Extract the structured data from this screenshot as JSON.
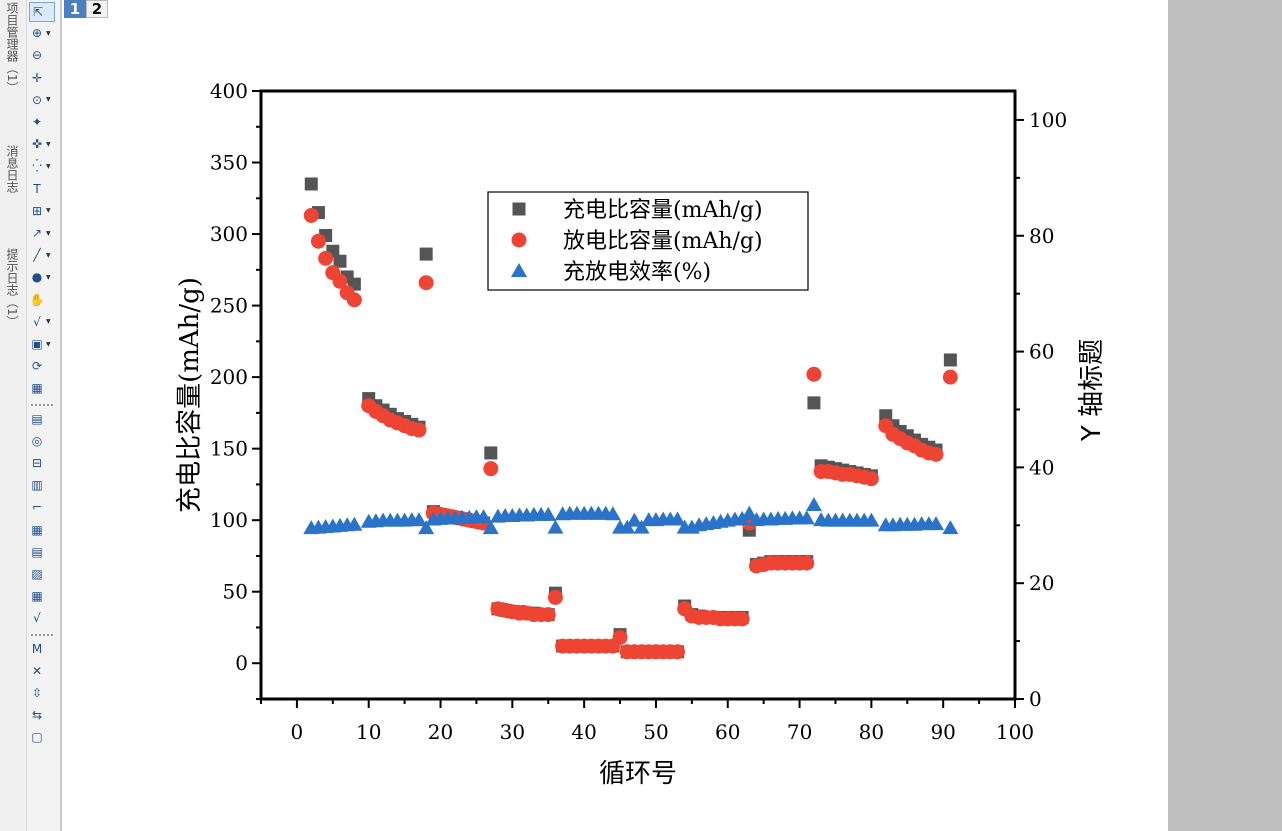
{
  "side_tabs": [
    "项目管理器（1）",
    "消息日志",
    "提示日志（1）"
  ],
  "toolbar_icons": [
    "pointer-icon",
    "zoom-icon",
    "zoom-scroll-icon",
    "scale-icon",
    "data-reader-icon",
    "screen-reader-icon",
    "data-selector-icon",
    "region-mask-icon",
    "text-tool-icon",
    "add-table-icon",
    "arrow-tool-icon",
    "line-tool-icon",
    "ellipse-tool-icon",
    "pan-hand-icon",
    "equation-icon",
    "insert-graph-icon",
    "3d-rotate-icon",
    "layer-icon",
    "color-scale-icon",
    "anchor-icon",
    "merge-icon",
    "legend-icon",
    "bracket-icon",
    "table-icon",
    "data-info-icon",
    "folder-graph-icon",
    "grid-icon",
    "equation-icon-2",
    "m-icon",
    "close-layer-icon",
    "move-layer-icon",
    "swap-icon",
    "lock-icon"
  ],
  "page_tabs": [
    "1",
    "2"
  ],
  "colors": {
    "charge": "#555555",
    "discharge": "#ee4433",
    "efficiency": "#2a73c8"
  },
  "chart_data": {
    "type": "scatter",
    "title": "",
    "xlabel": "循环号",
    "ylabel": "充电比容量(mAh/g)",
    "y2label": "Y 轴标题",
    "xlim": [
      -5,
      100
    ],
    "ylim": [
      -25,
      400
    ],
    "y2lim": [
      0,
      105
    ],
    "xticks": [
      0,
      10,
      20,
      30,
      40,
      50,
      60,
      70,
      80,
      90,
      100
    ],
    "yticks": [
      0,
      50,
      100,
      150,
      200,
      250,
      300,
      350,
      400
    ],
    "y2ticks": [
      0,
      20,
      40,
      60,
      80,
      100
    ],
    "legend_position": "top-center",
    "series": [
      {
        "name": "充电比容量(mAh/g)",
        "marker": "square",
        "axis": "left",
        "x": [
          2,
          3,
          4,
          5,
          6,
          7,
          8,
          10,
          11,
          12,
          13,
          14,
          15,
          16,
          17,
          18,
          19,
          20,
          21,
          22,
          23,
          24,
          25,
          26,
          27,
          28,
          29,
          30,
          31,
          32,
          33,
          34,
          35,
          36,
          37,
          38,
          39,
          40,
          41,
          42,
          43,
          44,
          45,
          46,
          47,
          48,
          49,
          50,
          51,
          52,
          53,
          54,
          55,
          56,
          57,
          58,
          59,
          60,
          61,
          62,
          63,
          64,
          65,
          66,
          67,
          68,
          69,
          70,
          71,
          72,
          73,
          74,
          75,
          76,
          77,
          78,
          79,
          80,
          82,
          83,
          84,
          85,
          86,
          87,
          88,
          89,
          91
        ],
        "y": [
          335,
          315,
          299,
          288,
          281,
          270,
          265,
          185,
          180,
          177,
          174,
          171,
          169,
          167,
          165,
          286,
          106,
          104,
          103,
          102,
          101,
          100,
          99,
          98,
          147,
          38,
          37,
          36,
          36,
          35,
          35,
          34,
          34,
          49,
          12,
          12,
          12,
          12,
          12,
          12,
          12,
          12,
          20,
          8,
          8,
          8,
          8,
          8,
          8,
          8,
          8,
          40,
          34,
          33,
          32,
          32,
          32,
          32,
          32,
          32,
          93,
          69,
          70,
          71,
          71,
          71,
          71,
          71,
          71,
          182,
          138,
          137,
          136,
          135,
          134,
          133,
          132,
          131,
          173,
          166,
          162,
          159,
          156,
          153,
          151,
          149,
          212
        ]
      },
      {
        "name": "放电比容量(mAh/g)",
        "marker": "circle",
        "axis": "left",
        "x": [
          2,
          3,
          4,
          5,
          6,
          7,
          8,
          10,
          11,
          12,
          13,
          14,
          15,
          16,
          17,
          18,
          19,
          20,
          21,
          22,
          23,
          24,
          25,
          26,
          27,
          28,
          29,
          30,
          31,
          32,
          33,
          34,
          35,
          36,
          37,
          38,
          39,
          40,
          41,
          42,
          43,
          44,
          45,
          46,
          47,
          48,
          49,
          50,
          51,
          52,
          53,
          54,
          55,
          56,
          57,
          58,
          59,
          60,
          61,
          62,
          63,
          64,
          65,
          66,
          67,
          68,
          69,
          70,
          71,
          72,
          73,
          74,
          75,
          76,
          77,
          78,
          79,
          80,
          82,
          83,
          84,
          85,
          86,
          87,
          88,
          89,
          91
        ],
        "y": [
          313,
          295,
          283,
          273,
          267,
          259,
          254,
          180,
          176,
          173,
          170,
          168,
          166,
          164,
          163,
          266,
          105,
          104,
          103,
          102,
          101,
          100,
          99,
          98,
          136,
          38,
          37,
          36,
          35,
          35,
          34,
          34,
          34,
          46,
          12,
          12,
          12,
          12,
          12,
          12,
          12,
          12,
          18,
          8,
          8,
          8,
          8,
          8,
          8,
          8,
          8,
          38,
          33,
          32,
          32,
          32,
          31,
          31,
          31,
          31,
          98,
          68,
          69,
          70,
          70,
          70,
          70,
          70,
          70,
          202,
          134,
          134,
          133,
          132,
          132,
          131,
          130,
          129,
          166,
          160,
          157,
          154,
          152,
          149,
          147,
          146,
          200
        ]
      },
      {
        "name": "充放电效率(%)",
        "marker": "triangle",
        "axis": "right",
        "x": [
          2,
          3,
          4,
          5,
          6,
          7,
          8,
          10,
          11,
          12,
          13,
          14,
          15,
          16,
          17,
          18,
          19,
          20,
          21,
          22,
          23,
          24,
          25,
          26,
          27,
          28,
          29,
          30,
          31,
          32,
          33,
          34,
          35,
          36,
          37,
          38,
          39,
          40,
          41,
          42,
          43,
          44,
          45,
          46,
          47,
          48,
          49,
          50,
          51,
          52,
          53,
          54,
          55,
          56,
          57,
          58,
          59,
          60,
          61,
          62,
          63,
          64,
          65,
          66,
          67,
          68,
          69,
          70,
          71,
          72,
          73,
          74,
          75,
          76,
          77,
          78,
          79,
          80,
          82,
          83,
          84,
          85,
          86,
          87,
          88,
          89,
          91
        ],
        "y": [
          29.5,
          29.6,
          29.7,
          29.8,
          29.9,
          30.0,
          30.1,
          30.6,
          30.7,
          30.8,
          30.8,
          30.8,
          30.8,
          30.9,
          30.9,
          29.5,
          31.0,
          31.1,
          31.2,
          31.2,
          31.3,
          31.3,
          31.4,
          31.4,
          29.5,
          31.5,
          31.6,
          31.6,
          31.7,
          31.7,
          31.8,
          31.8,
          31.8,
          29.6,
          31.9,
          32.0,
          32.0,
          32.0,
          32.0,
          32.0,
          32.0,
          31.9,
          29.6,
          29.6,
          30.8,
          29.6,
          30.9,
          30.9,
          31.0,
          31.0,
          31.0,
          29.6,
          29.6,
          30.0,
          30.2,
          30.4,
          30.6,
          30.8,
          31.0,
          31.1,
          32.0,
          30.9,
          31.0,
          31.0,
          31.1,
          31.1,
          31.2,
          31.2,
          31.2,
          33.5,
          30.9,
          30.8,
          30.8,
          30.8,
          30.8,
          30.8,
          30.8,
          30.8,
          30.0,
          30.0,
          30.1,
          30.1,
          30.1,
          30.2,
          30.2,
          30.2,
          29.5
        ]
      }
    ]
  }
}
